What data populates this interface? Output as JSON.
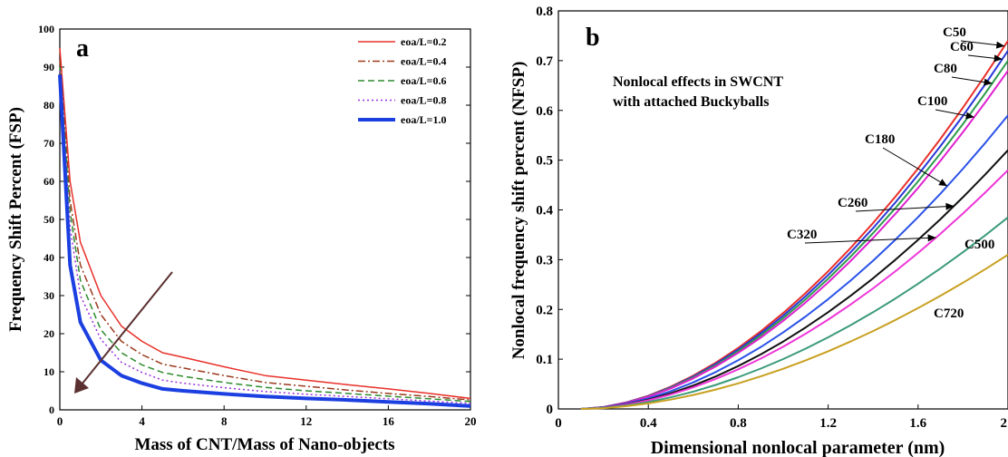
{
  "chart_data": [
    {
      "type": "line",
      "panel_label": "a",
      "xlabel": "Mass of CNT/Mass of Nano-objects",
      "ylabel": "Frequency Shift Percent (FSP)",
      "xlim": [
        0,
        20
      ],
      "ylim": [
        0,
        100
      ],
      "xticks": [
        0,
        4,
        8,
        12,
        16,
        20
      ],
      "yticks": [
        0,
        10,
        20,
        30,
        40,
        50,
        60,
        70,
        80,
        90,
        100
      ],
      "grid": false,
      "legend_position": "top-right",
      "annotation": "arrow pointing down-left indicating increasing eoa/L",
      "x": [
        0,
        0.5,
        1,
        2,
        3,
        4,
        5,
        6,
        8,
        10,
        12,
        14,
        16,
        18,
        20
      ],
      "series": [
        {
          "name": "eoa/L=0.2",
          "color": "#e8302a",
          "dash": "solid",
          "width": 1.5,
          "values": [
            95,
            60,
            44,
            30,
            22,
            18,
            15,
            13.8,
            11.3,
            9,
            7.8,
            6.6,
            5.5,
            4.3,
            3
          ]
        },
        {
          "name": "eoa/L=0.4",
          "color": "#9b3a1e",
          "dash": "dashdot",
          "width": 1.5,
          "values": [
            92,
            55,
            38,
            25,
            18,
            14.5,
            12,
            11,
            9,
            7.2,
            6.2,
            5.2,
            4.3,
            3.5,
            2.6
          ]
        },
        {
          "name": "eoa/L=0.6",
          "color": "#2e8b2e",
          "dash": "dashed",
          "width": 1.5,
          "values": [
            90,
            52,
            34,
            21,
            15,
            11.8,
            9.8,
            8.8,
            7.2,
            5.9,
            5,
            4.3,
            3.6,
            2.9,
            2.2
          ]
        },
        {
          "name": "eoa/L=0.8",
          "color": "#9b30d9",
          "dash": "dotted",
          "width": 1.5,
          "values": [
            89,
            48,
            30,
            18.5,
            12.5,
            9.8,
            7.8,
            7,
            5.8,
            4.8,
            4.1,
            3.5,
            2.9,
            2.3,
            1.7
          ]
        },
        {
          "name": "eoa/L=1.0",
          "color": "#1b3fe0",
          "dash": "solid",
          "width": 4,
          "values": [
            88,
            38,
            23,
            13,
            9,
            7,
            5.5,
            5,
            4.2,
            3.5,
            3,
            2.6,
            2.1,
            1.6,
            1
          ]
        }
      ]
    },
    {
      "type": "line",
      "panel_label": "b",
      "xlabel": "Dimensional nonlocal parameter (nm)",
      "ylabel": "Nonlocal frequency shift percent (NFSP)",
      "title_annotation": [
        "Nonlocal effects in SWCNT",
        "with attached Buckyballs"
      ],
      "xlim": [
        0,
        2
      ],
      "ylim": [
        0,
        0.8
      ],
      "xticks": [
        "0",
        "0.4",
        "0.8",
        "1.2",
        "1.6",
        "2"
      ],
      "yticks": [
        "0",
        "0.1",
        "0.2",
        "0.3",
        "0.4",
        "0.5",
        "0.6",
        "0.7",
        "0.8"
      ],
      "grid": false,
      "x": [
        0.1,
        0.2,
        0.3,
        0.4,
        0.5,
        0.6,
        0.7,
        0.8,
        0.9,
        1.0,
        1.1,
        1.2,
        1.3,
        1.4,
        1.5,
        1.6,
        1.7,
        1.8,
        1.9,
        2.0
      ],
      "series": [
        {
          "name": "C50",
          "color": "#e8302a",
          "max": 0.74
        },
        {
          "name": "C60",
          "color": "#2a36d8",
          "max": 0.72
        },
        {
          "name": "C80",
          "color": "#2f9a4c",
          "max": 0.7
        },
        {
          "name": "C100",
          "color": "#e020d0",
          "max": 0.68
        },
        {
          "name": "C180",
          "color": "#2a52e8",
          "max": 0.59
        },
        {
          "name": "C260",
          "color": "#111111",
          "max": 0.52
        },
        {
          "name": "C320",
          "color": "#ee36d8",
          "max": 0.48
        },
        {
          "name": "C500",
          "color": "#3a9a7a",
          "max": 0.385
        },
        {
          "name": "C720",
          "color": "#c8a020",
          "max": 0.31
        }
      ],
      "curve_model": "y = max * ((x-0.1)/1.9)^1.8"
    }
  ]
}
